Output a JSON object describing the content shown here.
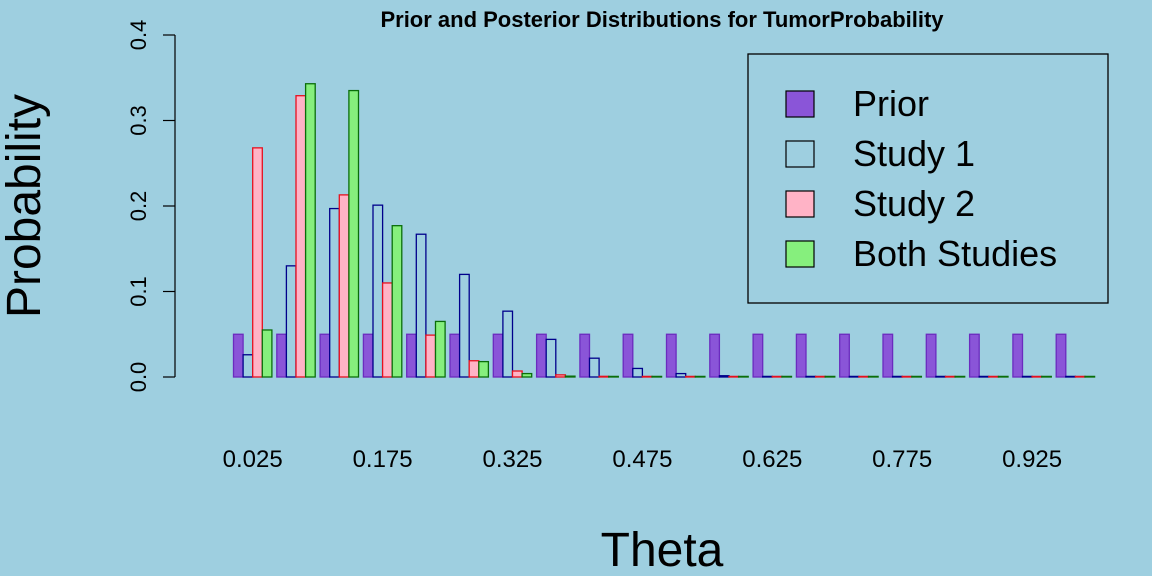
{
  "chart_data": {
    "type": "bar",
    "title": "Prior and Posterior Distributions for TumorProbability",
    "xlabel": "Theta",
    "ylabel": "Probability",
    "ylim": [
      0,
      0.4
    ],
    "yticks": [
      "0.0",
      "0.1",
      "0.2",
      "0.3",
      "0.4"
    ],
    "categories": [
      "0.025",
      "0.075",
      "0.125",
      "0.175",
      "0.225",
      "0.275",
      "0.325",
      "0.375",
      "0.425",
      "0.475",
      "0.525",
      "0.575",
      "0.625",
      "0.675",
      "0.725",
      "0.775",
      "0.825",
      "0.875",
      "0.925",
      "0.975"
    ],
    "xtick_labels": [
      "0.025",
      "0.175",
      "0.325",
      "0.475",
      "0.625",
      "0.775",
      "0.925"
    ],
    "legend_position": "top-right",
    "series": [
      {
        "name": "Prior",
        "fill": "#8a55d8",
        "stroke": "#6b2bbf",
        "values": [
          0.05,
          0.05,
          0.05,
          0.05,
          0.05,
          0.05,
          0.05,
          0.05,
          0.05,
          0.05,
          0.05,
          0.05,
          0.05,
          0.05,
          0.05,
          0.05,
          0.05,
          0.05,
          0.05,
          0.05
        ]
      },
      {
        "name": "Study 1",
        "fill": "#9ecfe0",
        "stroke": "#00008b",
        "values": [
          0.026,
          0.13,
          0.197,
          0.201,
          0.167,
          0.12,
          0.077,
          0.044,
          0.022,
          0.01,
          0.004,
          0.0015,
          0.0005,
          0.0002,
          0.0001,
          0,
          0,
          0,
          0,
          0
        ]
      },
      {
        "name": "Study 2",
        "fill": "#ffb3c6",
        "stroke": "#e8101e",
        "values": [
          0.268,
          0.329,
          0.213,
          0.11,
          0.049,
          0.019,
          0.007,
          0.0025,
          0.0008,
          0.0002,
          0.0001,
          0,
          0,
          0,
          0,
          0,
          0,
          0,
          0,
          0
        ]
      },
      {
        "name": "Both Studies",
        "fill": "#86ef7d",
        "stroke": "#0a6e0a",
        "values": [
          0.055,
          0.343,
          0.335,
          0.177,
          0.065,
          0.018,
          0.004,
          0.001,
          0.0002,
          0,
          0,
          0,
          0,
          0,
          0,
          0,
          0,
          0,
          0,
          0
        ]
      }
    ]
  }
}
